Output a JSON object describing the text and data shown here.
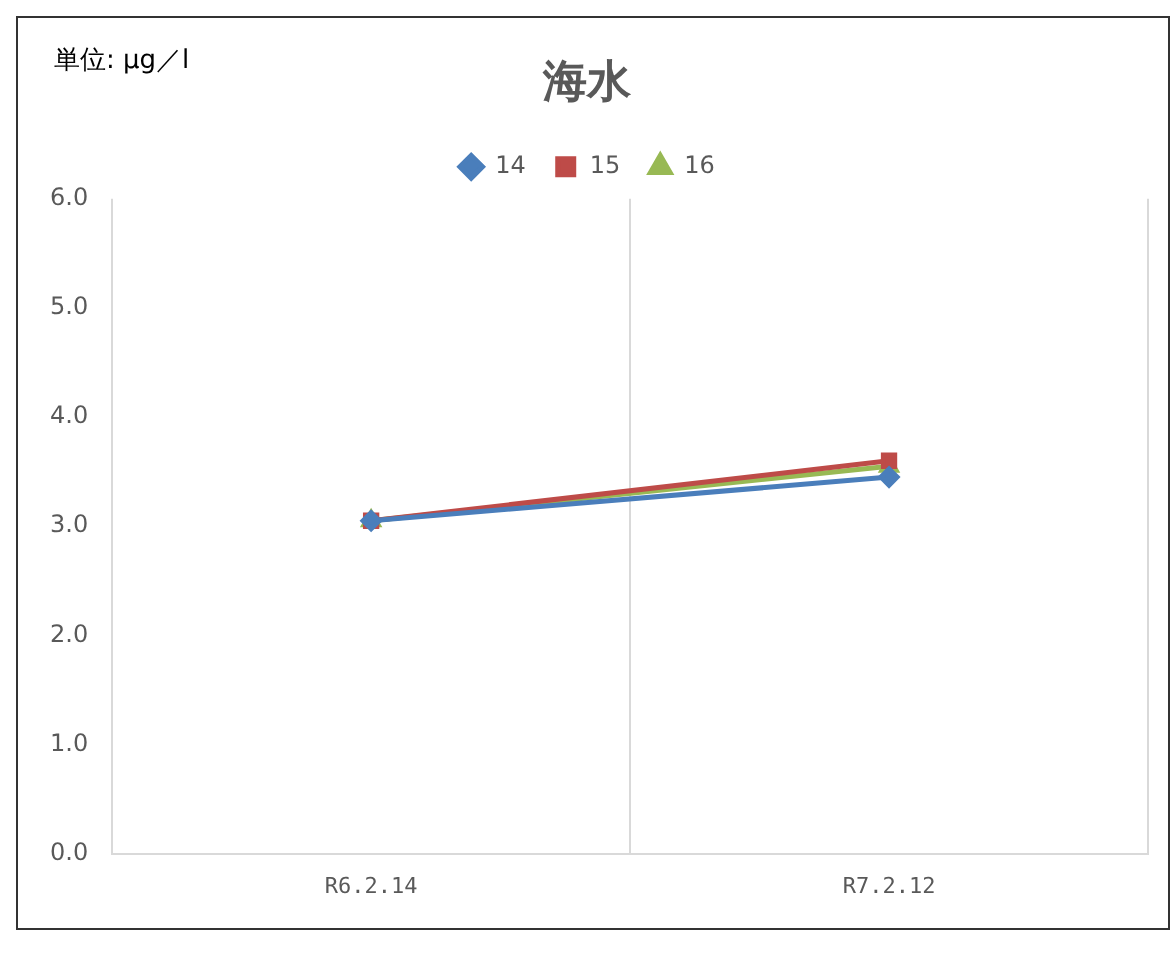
{
  "chart_data": {
    "type": "line",
    "title": "海水",
    "annotations": [
      "単位: µg／l"
    ],
    "categories": [
      "R6.2.14",
      "R7.2.12"
    ],
    "series": [
      {
        "name": "14",
        "color": "#4a7ebb",
        "values": [
          3.05,
          3.45
        ],
        "marker": "diamond"
      },
      {
        "name": "15",
        "color": "#be4b48",
        "values": [
          3.05,
          3.6
        ],
        "marker": "square"
      },
      {
        "name": "16",
        "color": "#98b954",
        "values": [
          3.05,
          3.55
        ],
        "marker": "triangle"
      }
    ],
    "ylim": [
      0,
      6
    ],
    "yticks": [
      {
        "value": 0,
        "label": "0.0"
      },
      {
        "value": 1,
        "label": "1.0"
      },
      {
        "value": 2,
        "label": "2.0"
      },
      {
        "value": 3,
        "label": "3.0"
      },
      {
        "value": 4,
        "label": "4.0"
      },
      {
        "value": 5,
        "label": "5.0"
      },
      {
        "value": 6,
        "label": "6.0"
      }
    ],
    "grid": "x",
    "legend": "top",
    "line_style": "solid"
  }
}
